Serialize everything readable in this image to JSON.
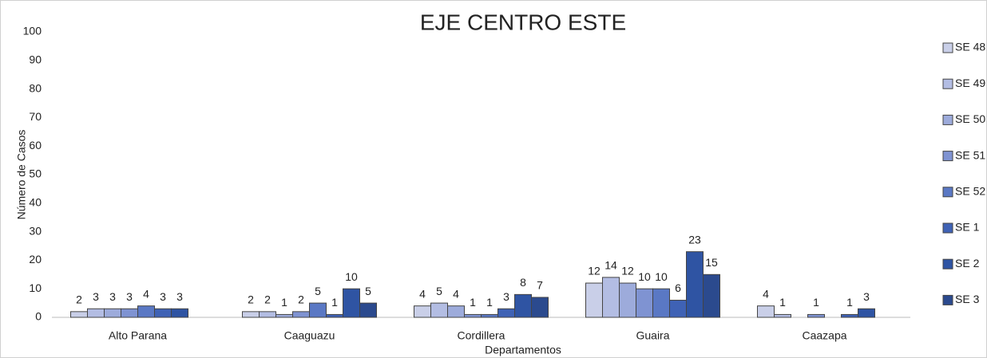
{
  "chart_data": {
    "type": "bar",
    "title": "EJE CENTRO ESTE",
    "x_label": "Departamentos",
    "y_label": "Número de Casos",
    "categories": [
      "Alto Parana",
      "Caaguazu",
      "Cordillera",
      "Guaira",
      "Caazapa"
    ],
    "series": [
      {
        "name": "SE 48",
        "color": "#c9cfe8",
        "values": [
          2,
          2,
          4,
          12,
          4
        ]
      },
      {
        "name": "SE 49",
        "color": "#b3bde3",
        "values": [
          3,
          2,
          5,
          14,
          1
        ]
      },
      {
        "name": "SE 50",
        "color": "#9dabdb",
        "values": [
          3,
          1,
          4,
          12,
          null
        ]
      },
      {
        "name": "SE 51",
        "color": "#7f93d2",
        "values": [
          3,
          2,
          1,
          10,
          1
        ]
      },
      {
        "name": "SE 52",
        "color": "#5a78c4",
        "values": [
          4,
          5,
          1,
          10,
          null
        ]
      },
      {
        "name": "SE 1",
        "color": "#3f62b5",
        "values": [
          3,
          1,
          3,
          6,
          1
        ]
      },
      {
        "name": "SE 2",
        "color": "#2f54a3",
        "values": [
          3,
          10,
          8,
          23,
          3
        ]
      },
      {
        "name": "SE 3",
        "color": "#2b4a8e",
        "values": [
          null,
          5,
          7,
          15,
          null
        ]
      }
    ],
    "ylim": [
      0,
      100
    ],
    "yticks": [
      0,
      10,
      20,
      30,
      40,
      50,
      60,
      70,
      80,
      90,
      100
    ],
    "grid": false,
    "legend": "right"
  }
}
